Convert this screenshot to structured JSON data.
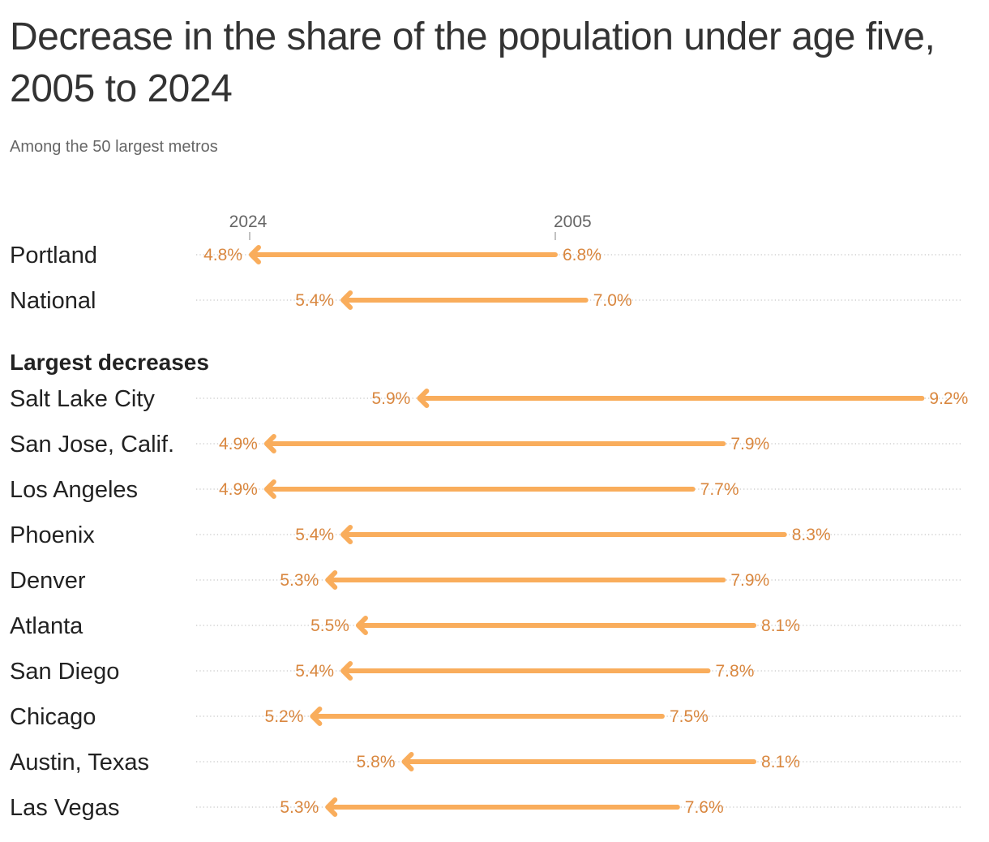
{
  "header": {
    "title": "Decrease in the share of the population under age five, 2005 to 2024",
    "subtitle": "Among the 50 largest metros"
  },
  "colors": {
    "arrow": "#f9ad5c",
    "value_text": "#d9873f",
    "gridline": "#c8c8c8",
    "axis_text": "#666666"
  },
  "chart_data": {
    "type": "arrow",
    "unit": "%",
    "series_start_label": "2005",
    "series_end_label": "2024",
    "xlim": [
      4.0,
      9.5
    ],
    "groups": [
      {
        "label": "",
        "rows": [
          {
            "name": "Portland",
            "start": 6.8,
            "end": 4.8,
            "start_label": "6.8%",
            "end_label": "4.8%"
          },
          {
            "name": "National",
            "start": 7.0,
            "end": 5.4,
            "start_label": "7.0%",
            "end_label": "5.4%"
          }
        ]
      },
      {
        "label": "Largest decreases",
        "rows": [
          {
            "name": "Salt Lake City",
            "start": 9.2,
            "end": 5.9,
            "start_label": "9.2%",
            "end_label": "5.9%"
          },
          {
            "name": "San Jose, Calif.",
            "start": 7.9,
            "end": 4.9,
            "start_label": "7.9%",
            "end_label": "4.9%"
          },
          {
            "name": "Los Angeles",
            "start": 7.7,
            "end": 4.9,
            "start_label": "7.7%",
            "end_label": "4.9%"
          },
          {
            "name": "Phoenix",
            "start": 8.3,
            "end": 5.4,
            "start_label": "8.3%",
            "end_label": "5.4%"
          },
          {
            "name": "Denver",
            "start": 7.9,
            "end": 5.3,
            "start_label": "7.9%",
            "end_label": "5.3%"
          },
          {
            "name": "Atlanta",
            "start": 8.1,
            "end": 5.5,
            "start_label": "8.1%",
            "end_label": "5.5%"
          },
          {
            "name": "San Diego",
            "start": 7.8,
            "end": 5.4,
            "start_label": "7.8%",
            "end_label": "5.4%"
          },
          {
            "name": "Chicago",
            "start": 7.5,
            "end": 5.2,
            "start_label": "7.5%",
            "end_label": "5.2%"
          },
          {
            "name": "Austin, Texas",
            "start": 8.1,
            "end": 5.8,
            "start_label": "8.1%",
            "end_label": "5.8%"
          },
          {
            "name": "Las Vegas",
            "start": 7.6,
            "end": 5.3,
            "start_label": "7.6%",
            "end_label": "5.3%"
          }
        ]
      }
    ]
  }
}
